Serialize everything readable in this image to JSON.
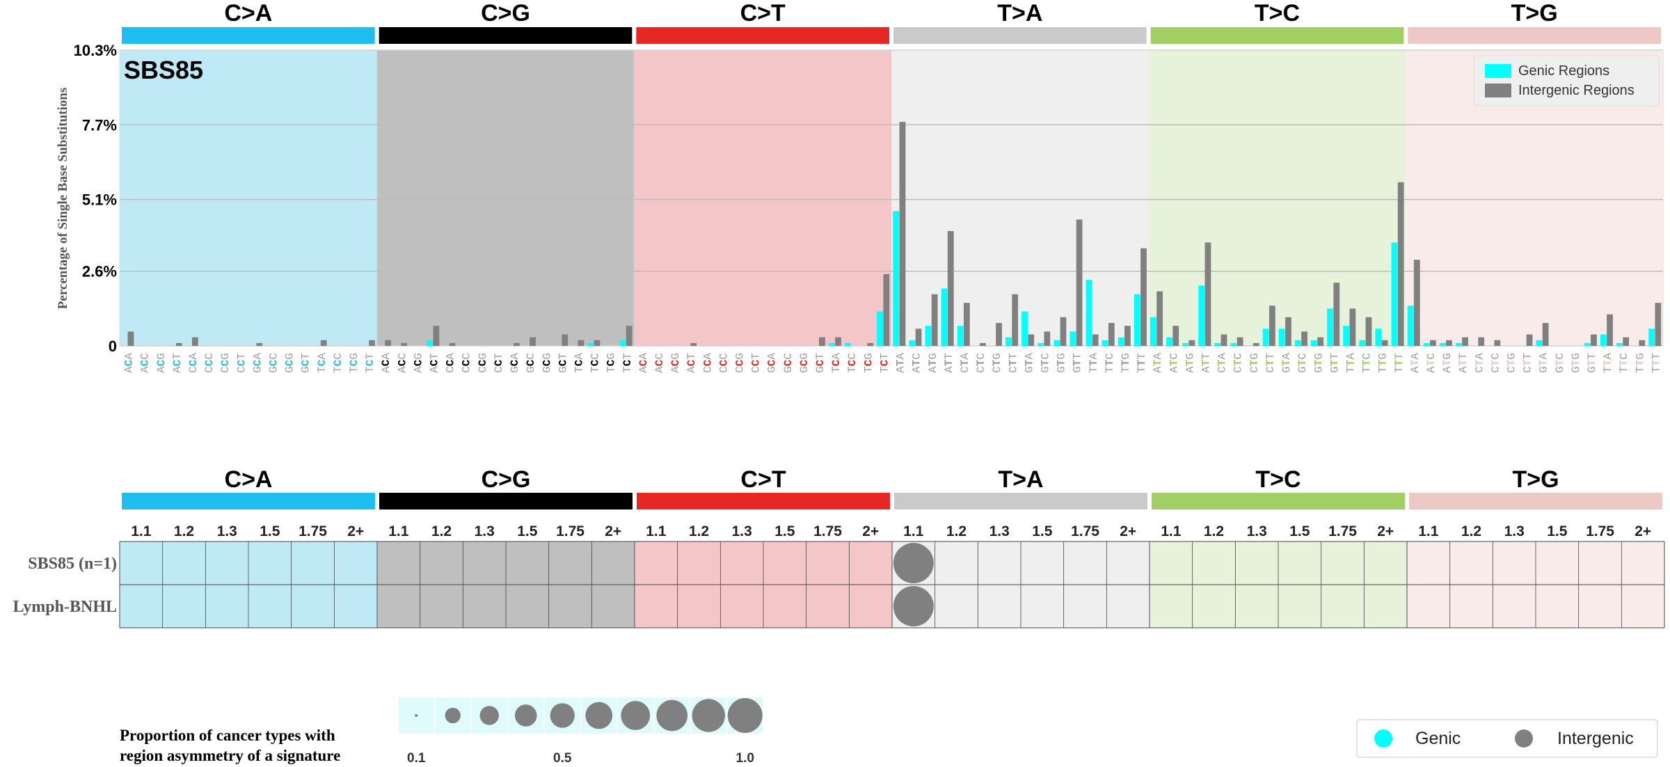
{
  "chart_data": [
    {
      "type": "bar",
      "signature_label": "SBS85",
      "ylabel": "Percentage of Single Base Substitutions",
      "y_ticks": [
        "10.3%",
        "7.7%",
        "5.1%",
        "2.6%",
        "0"
      ],
      "y_tick_values": [
        10.3,
        7.7,
        5.1,
        2.6,
        0
      ],
      "ylim": [
        0,
        10.3
      ],
      "grid": true,
      "legend_position": "top-right",
      "mutation_types": [
        "C>A",
        "C>G",
        "C>T",
        "T>A",
        "T>C",
        "T>G"
      ],
      "type_colors": [
        "#1ebff0",
        "#000000",
        "#e62725",
        "#cbcacb",
        "#a1cf64",
        "#edc8c5"
      ],
      "panel_colors": [
        "#bfeaf5",
        "#bfbfbf",
        "#f5c6c8",
        "#efefef",
        "#e6f2d9",
        "#f8ebea"
      ],
      "contexts": [
        "ACA",
        "ACC",
        "ACG",
        "ACT",
        "CCA",
        "CCC",
        "CCG",
        "CCT",
        "GCA",
        "GCC",
        "GCG",
        "GCT",
        "TCA",
        "TCC",
        "TCG",
        "TCT"
      ],
      "contexts_T": [
        "ATA",
        "ATC",
        "ATG",
        "ATT",
        "CTA",
        "CTC",
        "CTG",
        "CTT",
        "GTA",
        "GTC",
        "GTG",
        "GTT",
        "TTA",
        "TTC",
        "TTG",
        "TTT"
      ],
      "series": [
        {
          "name": "Genic Regions",
          "color": "#00ffff",
          "values": [
            0,
            0,
            0,
            0,
            0,
            0,
            0,
            0,
            0,
            0,
            0,
            0,
            0,
            0,
            0,
            0,
            0,
            0,
            0,
            0.2,
            0,
            0,
            0,
            0,
            0,
            0,
            0,
            0,
            0,
            0.1,
            0,
            0.2,
            0,
            0,
            0,
            0,
            0,
            0,
            0,
            0,
            0,
            0,
            0,
            0,
            0.1,
            0.1,
            0,
            1.2,
            4.7,
            0.2,
            0.7,
            2.0,
            0.7,
            0,
            0,
            0.3,
            1.2,
            0.1,
            0.2,
            0.5,
            2.3,
            0.2,
            0.3,
            1.8,
            1.0,
            0.3,
            0.1,
            2.1,
            0.1,
            0.1,
            0,
            0.6,
            0.6,
            0.2,
            0.2,
            1.3,
            0.7,
            0.2,
            0.6,
            3.6,
            1.4,
            0.1,
            0.1,
            0.1,
            0,
            0,
            0,
            0,
            0.2,
            0,
            0,
            0.1,
            0.4,
            0.1,
            0,
            0.6
          ]
        },
        {
          "name": "Intergenic Regions",
          "color": "#808080",
          "values": [
            0.5,
            0,
            0,
            0.1,
            0.3,
            0,
            0,
            0,
            0.1,
            0,
            0,
            0,
            0.2,
            0,
            0,
            0.2,
            0.2,
            0.1,
            0,
            0.7,
            0.1,
            0,
            0,
            0,
            0.1,
            0.3,
            0,
            0.4,
            0.2,
            0.2,
            0,
            0.7,
            0,
            0,
            0,
            0.1,
            0,
            0,
            0,
            0,
            0,
            0,
            0,
            0.3,
            0.3,
            0,
            0.1,
            2.5,
            7.8,
            0.6,
            1.8,
            4.0,
            1.5,
            0.1,
            0.8,
            1.8,
            0.4,
            0.5,
            1.0,
            4.4,
            0.4,
            0.8,
            0.7,
            3.4,
            1.9,
            0.7,
            0.2,
            3.6,
            0.4,
            0.3,
            0.1,
            1.4,
            1.0,
            0.5,
            0.3,
            2.2,
            1.3,
            1.0,
            0.2,
            5.7,
            3.0,
            0.2,
            0.2,
            0.3,
            0.3,
            0.2,
            0,
            0.4,
            0.8,
            0,
            0,
            0.4,
            1.1,
            0.3,
            0.2,
            1.5
          ]
        }
      ]
    },
    {
      "type": "heatmap",
      "mutation_types": [
        "C>A",
        "C>G",
        "C>T",
        "T>A",
        "T>C",
        "T>G"
      ],
      "fold_labels": [
        "1.1",
        "1.2",
        "1.3",
        "1.5",
        "1.75",
        "2+"
      ],
      "rows": [
        "SBS85 (n=1)",
        "Lymph-BNHL"
      ],
      "cells": [
        {
          "row": 0,
          "type": "T>A",
          "fold": "1.1",
          "proportion": 1.0,
          "region": "Intergenic"
        },
        {
          "row": 1,
          "type": "T>A",
          "fold": "1.1",
          "proportion": 1.0,
          "region": "Intergenic"
        }
      ],
      "legend": {
        "title_line1": "Proportion of cancer types with",
        "title_line2": "region asymmetry of a signature",
        "proportions": [
          0.1,
          0.2,
          0.3,
          0.4,
          0.5,
          0.6,
          0.7,
          0.8,
          0.9,
          1.0
        ],
        "tick_labels": [
          "0.1",
          "0.5",
          "1.0"
        ],
        "tick_values": [
          0.1,
          0.5,
          1.0
        ]
      },
      "region_legend": [
        {
          "label": "Genic",
          "color": "#00ffff"
        },
        {
          "label": "Intergenic",
          "color": "#808080"
        }
      ]
    }
  ]
}
